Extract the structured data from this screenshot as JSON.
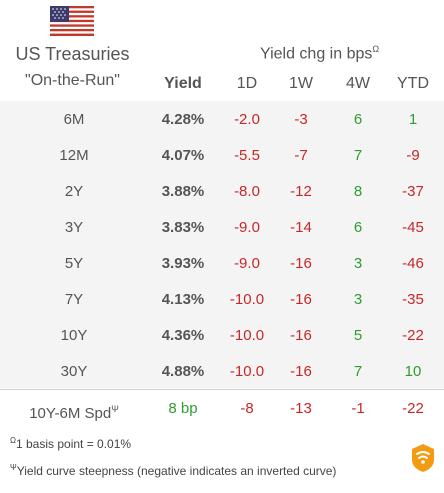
{
  "header": {
    "title_line1": "US Treasuries",
    "title_line2": "\"On-the-Run\"",
    "change_header": "Yield chg in bps",
    "change_header_marker": "Ω",
    "columns": {
      "yield": "Yield",
      "d1": "1D",
      "w1": "1W",
      "w4": "4W",
      "ytd": "YTD"
    }
  },
  "rows": [
    {
      "tenor": "6M",
      "yield": "4.28%",
      "d1": "-2.0",
      "w1": "-3",
      "w4": "6",
      "ytd": "1"
    },
    {
      "tenor": "12M",
      "yield": "4.07%",
      "d1": "-5.5",
      "w1": "-7",
      "w4": "7",
      "ytd": "-9"
    },
    {
      "tenor": "2Y",
      "yield": "3.88%",
      "d1": "-8.0",
      "w1": "-12",
      "w4": "8",
      "ytd": "-37"
    },
    {
      "tenor": "3Y",
      "yield": "3.83%",
      "d1": "-9.0",
      "w1": "-14",
      "w4": "6",
      "ytd": "-45"
    },
    {
      "tenor": "5Y",
      "yield": "3.93%",
      "d1": "-9.0",
      "w1": "-16",
      "w4": "3",
      "ytd": "-46"
    },
    {
      "tenor": "7Y",
      "yield": "4.13%",
      "d1": "-10.0",
      "w1": "-16",
      "w4": "3",
      "ytd": "-35"
    },
    {
      "tenor": "10Y",
      "yield": "4.36%",
      "d1": "-10.0",
      "w1": "-16",
      "w4": "5",
      "ytd": "-22"
    },
    {
      "tenor": "30Y",
      "yield": "4.88%",
      "d1": "-10.0",
      "w1": "-16",
      "w4": "7",
      "ytd": "10"
    }
  ],
  "spread": {
    "label": "10Y-6M Spd",
    "marker": "Ψ",
    "value": "8 bp",
    "d1": "-8",
    "w1": "-13",
    "w4": "-1",
    "ytd": "-22"
  },
  "footnotes": {
    "note1_marker": "Ω",
    "note1_text": "1 basis point = 0.01%",
    "note2_marker": "Ψ",
    "note2_text": "Yield curve steepness (negative indicates an inverted curve)"
  },
  "icons": {
    "flag": "us-flag-icon",
    "logo": "brand-logo-icon"
  },
  "colors": {
    "negative": "#c62828",
    "positive": "#2e9d2e",
    "table_background": "#f4f4f4",
    "logo_orange": "#f39c12"
  }
}
